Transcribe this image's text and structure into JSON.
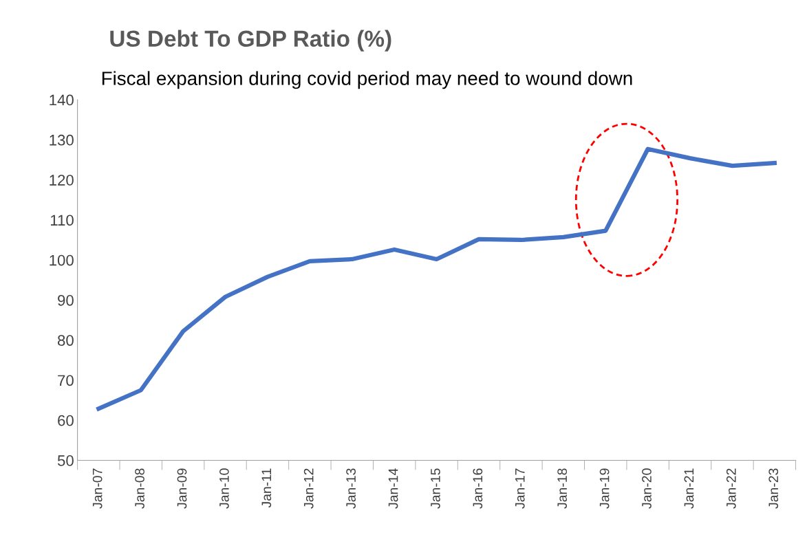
{
  "chart_data": {
    "type": "line",
    "title": "US Debt To GDP Ratio (%)",
    "subtitle": "Fiscal expansion during covid period may need to wound down",
    "categories": [
      "Jan-07",
      "Jan-08",
      "Jan-09",
      "Jan-10",
      "Jan-11",
      "Jan-12",
      "Jan-13",
      "Jan-14",
      "Jan-15",
      "Jan-16",
      "Jan-17",
      "Jan-18",
      "Jan-19",
      "Jan-20",
      "Jan-21",
      "Jan-22",
      "Jan-23"
    ],
    "series": [
      {
        "color": "#4472c4",
        "values": [
          62.9,
          67.5,
          82.2,
          90.8,
          95.8,
          99.7,
          100.2,
          102.6,
          100.2,
          105.2,
          105.0,
          105.7,
          107.3,
          127.7,
          125.4,
          123.5,
          124.2
        ]
      }
    ],
    "ylim": [
      50,
      140
    ],
    "yticks": [
      50,
      60,
      70,
      80,
      90,
      100,
      110,
      120,
      130,
      140
    ],
    "grid": false,
    "legend": false,
    "marker": "none",
    "line_style": "solid"
  }
}
